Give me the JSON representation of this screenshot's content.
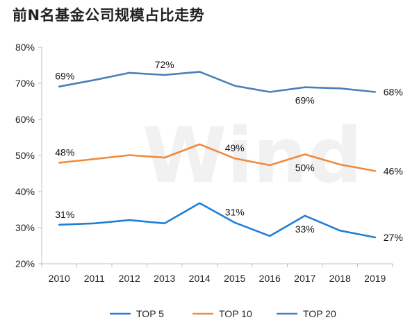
{
  "chart_data": {
    "type": "line",
    "title": "前N名基金公司规模占比走势",
    "watermark": "Wind",
    "x": [
      "2010",
      "2011",
      "2012",
      "2013",
      "2014",
      "2015",
      "2016",
      "2017",
      "2018",
      "2019"
    ],
    "ylim": [
      20,
      80
    ],
    "yticks": [
      "20%",
      "30%",
      "40%",
      "50%",
      "60%",
      "70%",
      "80%"
    ],
    "grid": false,
    "legend_position": "bottom",
    "series": [
      {
        "name": "TOP 5",
        "color": "#1f7fd6",
        "values": [
          30.8,
          31.2,
          32.1,
          31.2,
          36.8,
          31.4,
          27.7,
          33.3,
          29.2,
          27.3
        ],
        "labels": [
          {
            "index": 0,
            "text": "31%",
            "pos": "above"
          },
          {
            "index": 5,
            "text": "31%",
            "pos": "above"
          },
          {
            "index": 7,
            "text": "33%",
            "pos": "below"
          },
          {
            "index": 9,
            "text": "27%",
            "pos": "right"
          }
        ]
      },
      {
        "name": "TOP 10",
        "color": "#f08a3c",
        "values": [
          48.0,
          49.0,
          50.1,
          49.4,
          53.1,
          49.2,
          47.3,
          50.3,
          47.5,
          45.7
        ],
        "labels": [
          {
            "index": 0,
            "text": "48%",
            "pos": "above"
          },
          {
            "index": 5,
            "text": "49%",
            "pos": "above"
          },
          {
            "index": 7,
            "text": "50%",
            "pos": "below"
          },
          {
            "index": 9,
            "text": "46%",
            "pos": "right"
          }
        ]
      },
      {
        "name": "TOP 20",
        "color": "#4b7fb9",
        "values": [
          69.1,
          70.9,
          72.9,
          72.3,
          73.2,
          69.3,
          67.6,
          68.9,
          68.6,
          67.6
        ],
        "labels": [
          {
            "index": 0,
            "text": "69%",
            "pos": "above"
          },
          {
            "index": 3,
            "text": "72%",
            "pos": "above"
          },
          {
            "index": 7,
            "text": "69%",
            "pos": "below"
          },
          {
            "index": 9,
            "text": "68%",
            "pos": "right"
          }
        ]
      }
    ]
  }
}
